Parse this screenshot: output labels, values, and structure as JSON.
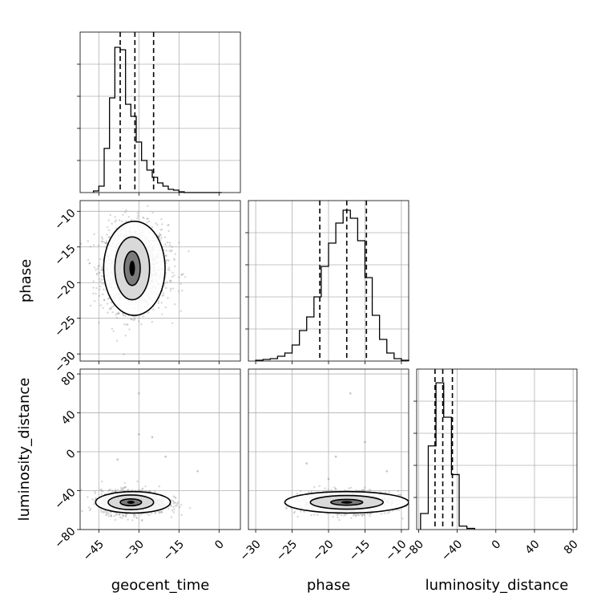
{
  "chart_data": {
    "type": "corner",
    "parameters": [
      "geocent_time",
      "phase",
      "luminosity_distance"
    ],
    "grid": true,
    "quantile_lines": "dashed",
    "panels": [
      {
        "id": "hist-geocent_time",
        "type": "histogram",
        "x_param": "geocent_time",
        "xlim": [
          -52,
          8
        ],
        "bins": [
          -47,
          -45,
          -43,
          -41,
          -39,
          -37,
          -35,
          -33,
          -31,
          -29,
          -27,
          -25,
          -23,
          -21,
          -19,
          -17,
          -15,
          -13,
          -11,
          -9,
          -7,
          -5,
          -3,
          -1,
          1
        ],
        "counts": [
          2,
          8,
          55,
          118,
          181,
          178,
          110,
          95,
          63,
          40,
          28,
          19,
          12,
          8,
          4,
          3,
          1,
          0,
          0,
          0,
          0,
          0,
          0,
          0
        ],
        "ylim": [
          0,
          200
        ],
        "quantiles": [
          -37,
          -31.5,
          -24.5
        ]
      },
      {
        "id": "hist-phase",
        "type": "histogram",
        "x_param": "phase",
        "xlim": [
          -31,
          -9
        ],
        "bins": [
          -30,
          -29,
          -28,
          -27,
          -26,
          -25,
          -24,
          -23,
          -22,
          -21,
          -20,
          -19,
          -18,
          -17,
          -16,
          -15,
          -14,
          -13,
          -12,
          -11,
          -10,
          -9
        ],
        "counts": [
          1,
          2,
          3,
          6,
          10,
          20,
          38,
          55,
          80,
          118,
          147,
          172,
          188,
          178,
          150,
          104,
          57,
          27,
          10,
          3,
          1
        ],
        "ylim": [
          0,
          200
        ],
        "quantiles": [
          -21.2,
          -17.5,
          -14.8
        ]
      },
      {
        "id": "hist-luminosity_distance",
        "type": "histogram",
        "x_param": "luminosity_distance",
        "xlim": [
          -82,
          84
        ],
        "bins": [
          -78,
          -70,
          -62,
          -54,
          -46,
          -38,
          -30,
          -22
        ],
        "counts": [
          14,
          73,
          128,
          98,
          48,
          3,
          1
        ],
        "ylim": [
          0,
          140
        ],
        "quantiles": [
          -63,
          -55,
          -45
        ]
      },
      {
        "id": "scatter-geocent_time-phase",
        "type": "2d-density",
        "x_param": "geocent_time",
        "y_param": "phase",
        "xlim": [
          -52,
          8
        ],
        "ylim": [
          -31,
          -8.5
        ],
        "center": [
          -32.5,
          -18
        ],
        "spread": [
          5.5,
          3
        ],
        "skew_x": 2,
        "contours": [
          {
            "rx": 3,
            "ry": 2.4
          },
          {
            "rx": 6.5,
            "ry": 4.4
          },
          {
            "rx": 11.5,
            "ry": 6.6
          }
        ],
        "n_points": 1600
      },
      {
        "id": "scatter-geocent_time-luminosity_distance",
        "type": "2d-density",
        "x_param": "geocent_time",
        "y_param": "luminosity_distance",
        "xlim": [
          -52,
          8
        ],
        "ylim": [
          -80,
          85
        ],
        "center": [
          -33,
          -52
        ],
        "spread": [
          5.5,
          6
        ],
        "skew_x": 2,
        "outliers": [
          [
            -30,
            60
          ],
          [
            -25,
            15
          ],
          [
            -20,
            -5
          ],
          [
            -38,
            -8
          ],
          [
            -30,
            18
          ],
          [
            -8,
            -20
          ]
        ],
        "contours": [
          {
            "rx": 4,
            "ry": 3.5
          },
          {
            "rx": 8.5,
            "ry": 7.5
          },
          {
            "rx": 14,
            "ry": 11
          }
        ],
        "n_points": 1400
      },
      {
        "id": "scatter-phase-luminosity_distance",
        "type": "2d-density",
        "x_param": "phase",
        "y_param": "luminosity_distance",
        "xlim": [
          -31,
          -9
        ],
        "ylim": [
          -80,
          85
        ],
        "center": [
          -17.5,
          -52
        ],
        "spread": [
          3,
          5.5
        ],
        "skew_x": 0,
        "outliers": [
          [
            -17,
            60
          ],
          [
            -15,
            10
          ],
          [
            -19,
            -5
          ],
          [
            -23,
            -12
          ],
          [
            -20,
            -28
          ],
          [
            -12,
            -20
          ]
        ],
        "contours": [
          {
            "rx": 2.2,
            "ry": 3
          },
          {
            "rx": 5,
            "ry": 7
          },
          {
            "rx": 8.5,
            "ry": 11
          }
        ],
        "n_points": 1400
      }
    ],
    "axes": {
      "geocent_time": {
        "ticks": [
          -45,
          -30,
          -15,
          0
        ],
        "tick_labels": [
          "−45",
          "−30",
          "−15",
          "0"
        ],
        "label": "geocent_time"
      },
      "phase": {
        "ticks": [
          -30,
          -25,
          -20,
          -15,
          -10
        ],
        "tick_labels": [
          "−30",
          "−25",
          "−20",
          "−15",
          "−10"
        ],
        "label": "phase"
      },
      "luminosity_distance": {
        "ticks": [
          -80,
          -40,
          0,
          40,
          80
        ],
        "tick_labels": [
          "−80",
          "−40",
          "0",
          "40",
          "80"
        ],
        "label": "luminosity_distance"
      }
    }
  }
}
